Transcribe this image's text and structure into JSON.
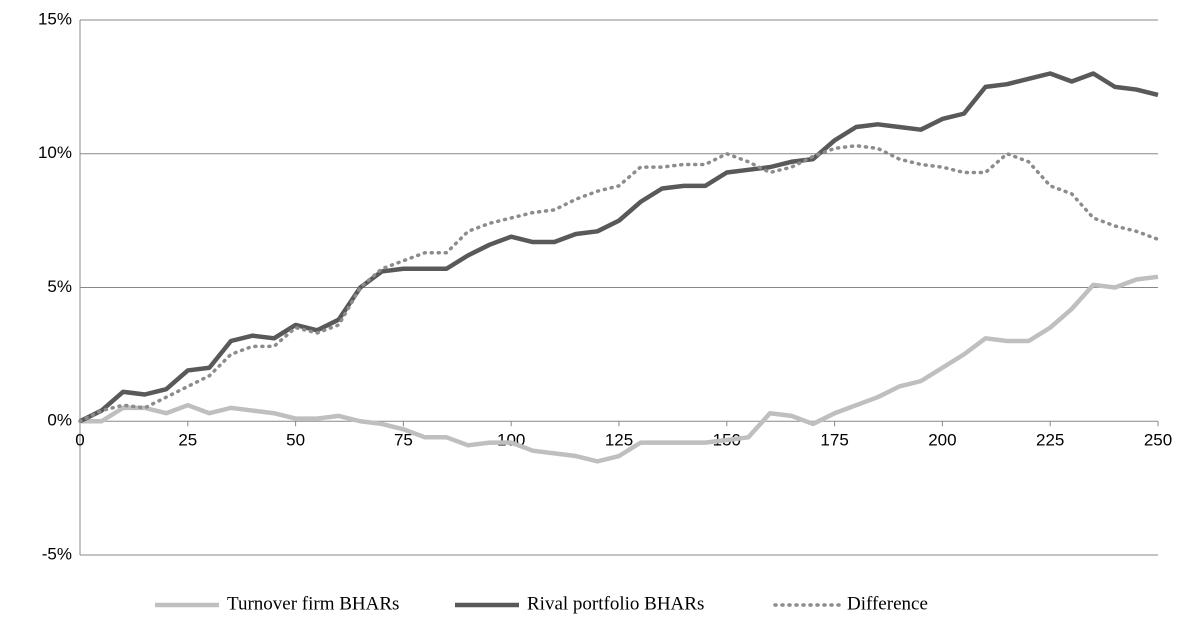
{
  "chart_data": {
    "type": "line",
    "x": [
      0,
      5,
      10,
      15,
      20,
      25,
      30,
      35,
      40,
      45,
      50,
      55,
      60,
      65,
      70,
      75,
      80,
      85,
      90,
      95,
      100,
      105,
      110,
      115,
      120,
      125,
      130,
      135,
      140,
      145,
      150,
      155,
      160,
      165,
      170,
      175,
      180,
      185,
      190,
      195,
      200,
      205,
      210,
      215,
      220,
      225,
      230,
      235,
      240,
      245,
      250
    ],
    "series": [
      {
        "name": "Turnover firm BHARs",
        "color": "#bfbfbf",
        "dash": "solid",
        "values": [
          0,
          0,
          0.5,
          0.5,
          0.3,
          0.6,
          0.3,
          0.5,
          0.4,
          0.3,
          0.1,
          0.1,
          0.2,
          0,
          -0.1,
          -0.3,
          -0.6,
          -0.6,
          -0.9,
          -0.8,
          -0.8,
          -1.1,
          -1.2,
          -1.3,
          -1.5,
          -1.3,
          -0.8,
          -0.8,
          -0.8,
          -0.8,
          -0.7,
          -0.6,
          0.3,
          0.2,
          -0.1,
          0.3,
          0.6,
          0.9,
          1.3,
          1.5,
          2.0,
          2.5,
          3.1,
          3.0,
          3.0,
          3.5,
          4.2,
          5.1,
          5.0,
          5.3,
          5.4
        ]
      },
      {
        "name": "Rival portfolio BHARs",
        "color": "#595959",
        "dash": "solid",
        "values": [
          0,
          0.4,
          1.1,
          1.0,
          1.2,
          1.9,
          2.0,
          3.0,
          3.2,
          3.1,
          3.6,
          3.4,
          3.8,
          5.0,
          5.6,
          5.7,
          5.7,
          5.7,
          6.2,
          6.6,
          6.9,
          6.7,
          6.7,
          7.0,
          7.1,
          7.5,
          8.2,
          8.7,
          8.8,
          8.8,
          9.3,
          9.4,
          9.5,
          9.7,
          9.8,
          10.5,
          11.0,
          11.1,
          11.0,
          10.9,
          11.3,
          11.5,
          12.5,
          12.6,
          12.8,
          13.0,
          12.7,
          13.0,
          12.5,
          12.4,
          12.2
        ]
      },
      {
        "name": "Difference",
        "color": "#8c8c8c",
        "dash": "dotted",
        "values": [
          0,
          0.4,
          0.6,
          0.5,
          0.9,
          1.3,
          1.7,
          2.5,
          2.8,
          2.8,
          3.5,
          3.3,
          3.6,
          5.0,
          5.7,
          6.0,
          6.3,
          6.3,
          7.1,
          7.4,
          7.6,
          7.8,
          7.9,
          8.3,
          8.6,
          8.8,
          9.5,
          9.5,
          9.6,
          9.6,
          10.0,
          9.7,
          9.3,
          9.5,
          9.9,
          10.2,
          10.3,
          10.2,
          9.8,
          9.6,
          9.5,
          9.3,
          9.3,
          10.0,
          9.7,
          8.8,
          8.5,
          7.6,
          7.3,
          7.1,
          6.8
        ]
      }
    ],
    "xlim": [
      0,
      250
    ],
    "xticks": [
      0,
      25,
      50,
      75,
      100,
      125,
      150,
      175,
      200,
      225,
      250
    ],
    "ylim": [
      -5,
      15
    ],
    "yticks": [
      {
        "value": -5,
        "label": "-5%"
      },
      {
        "value": 0,
        "label": "0%"
      },
      {
        "value": 5,
        "label": "5%"
      },
      {
        "value": 10,
        "label": "10%"
      },
      {
        "value": 15,
        "label": "15%"
      }
    ],
    "grid": true,
    "legend": "bottom"
  }
}
